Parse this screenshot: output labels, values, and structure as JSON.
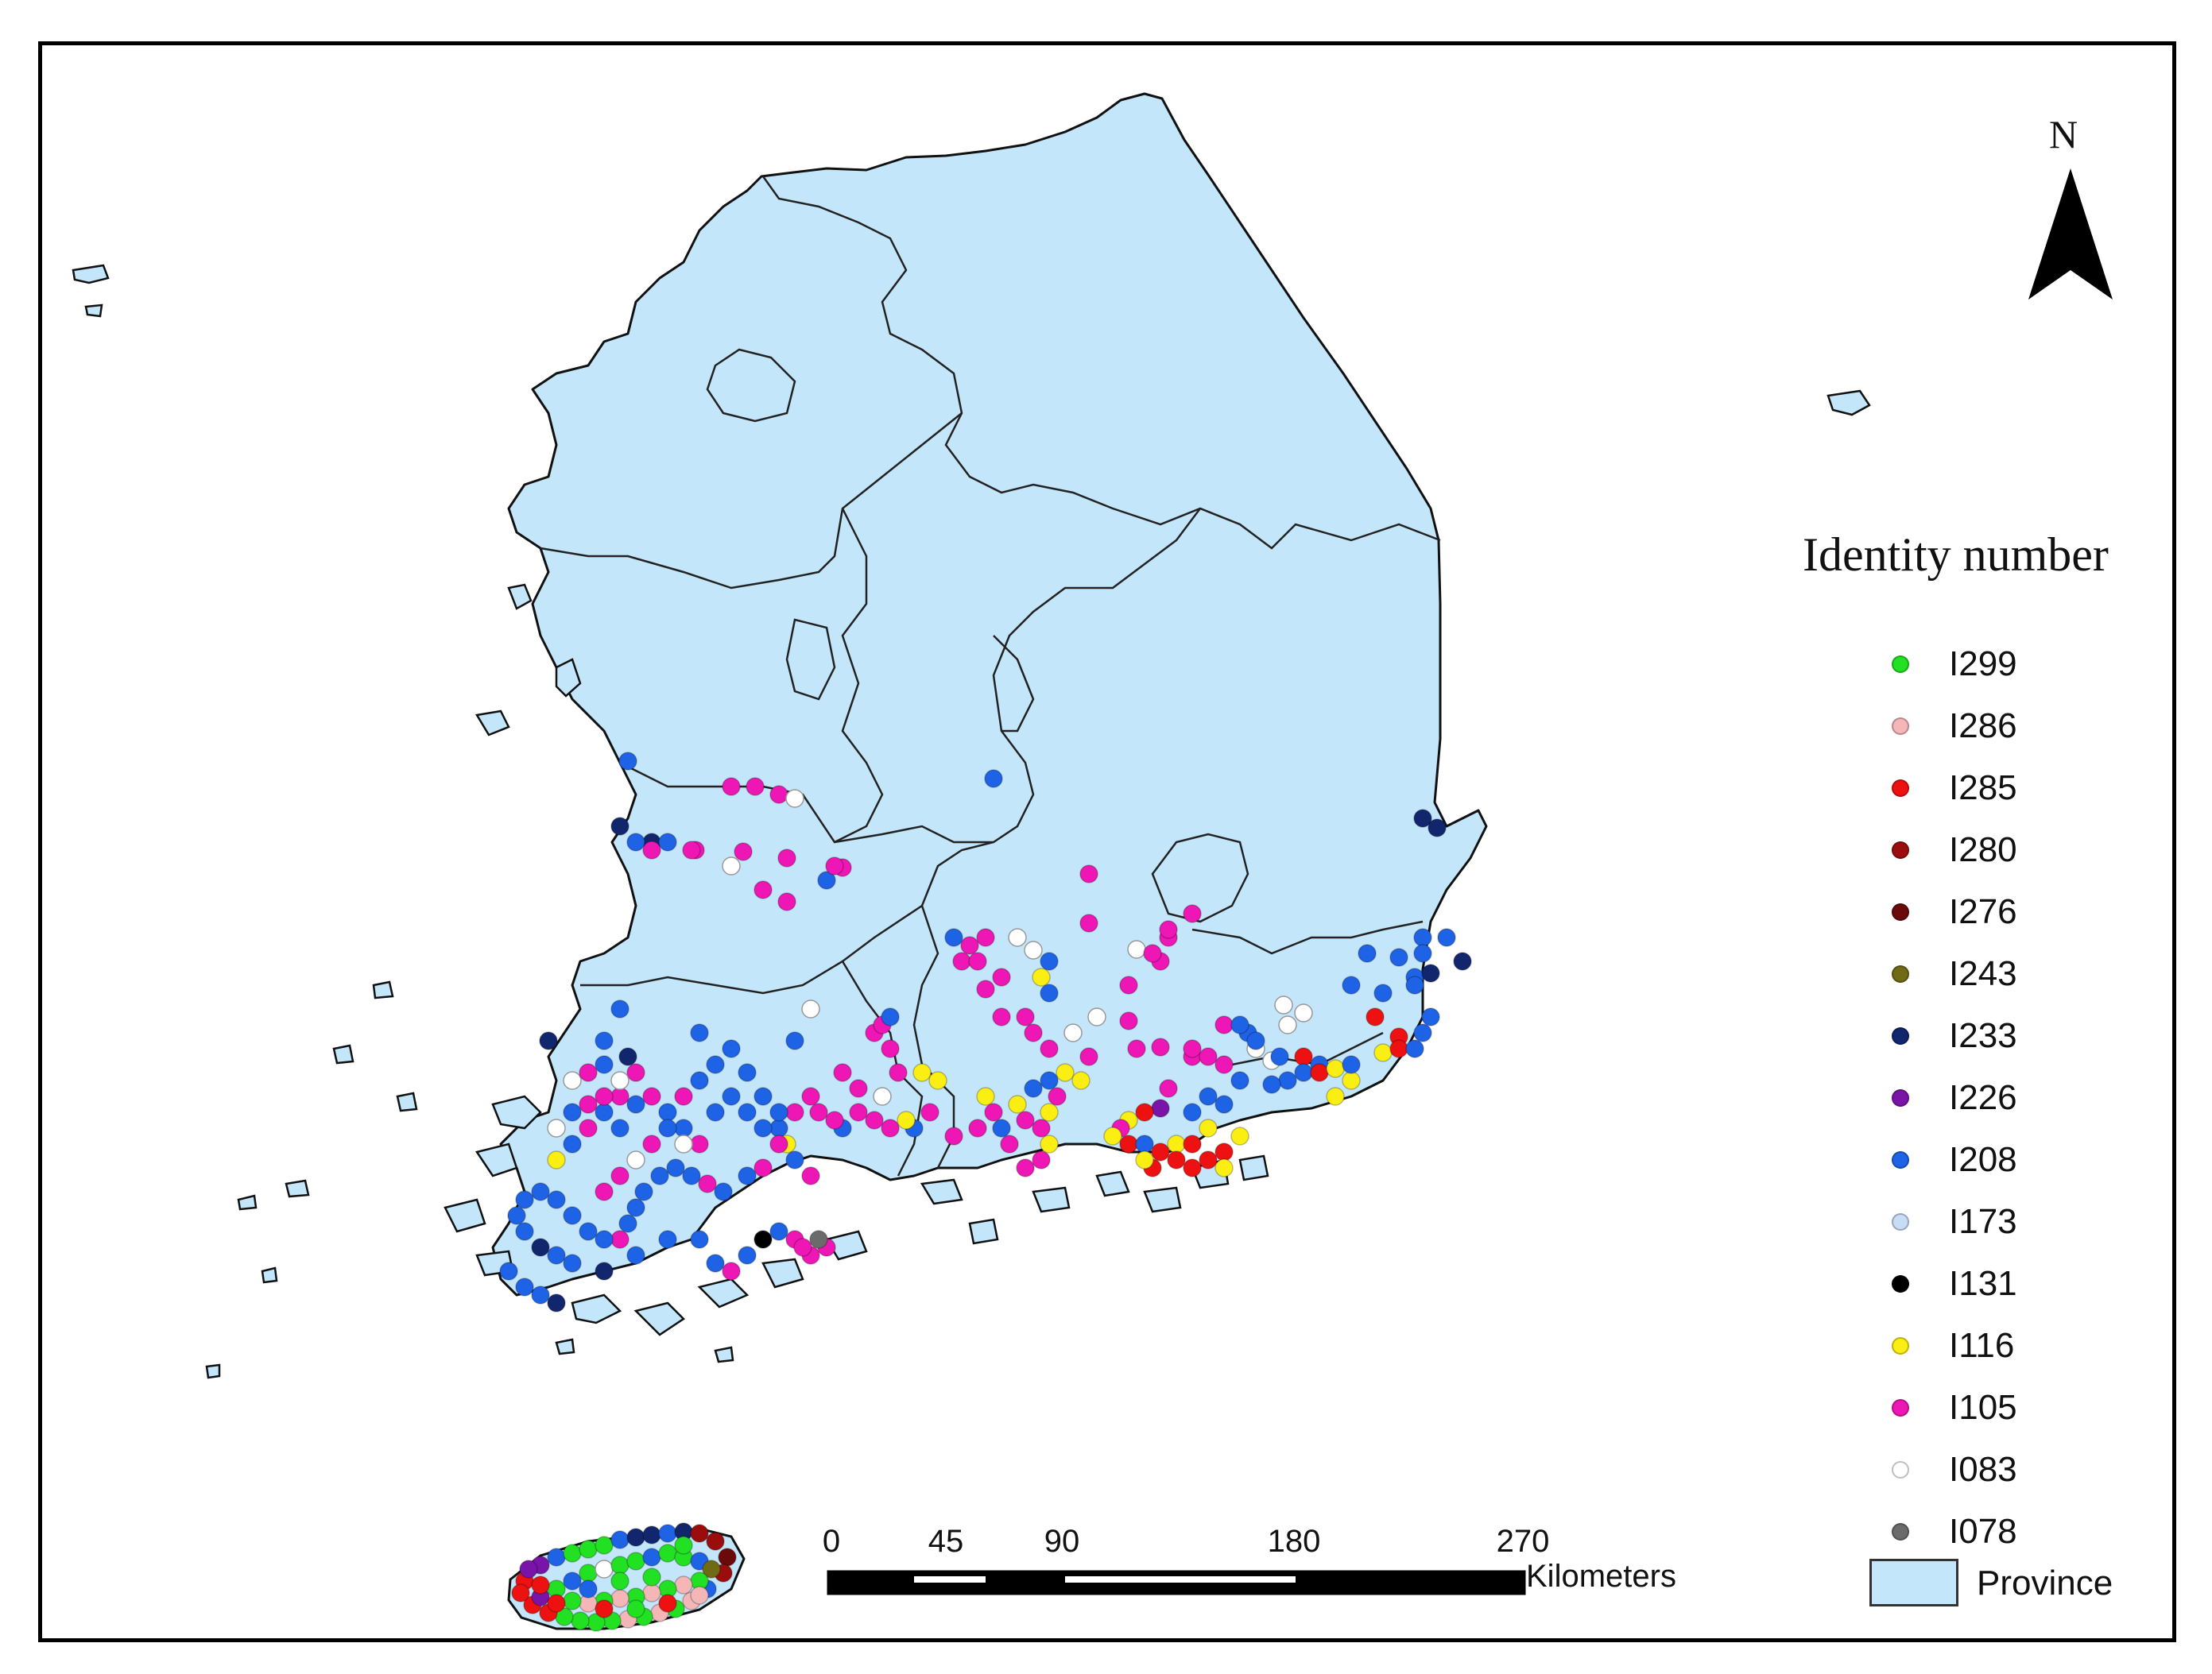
{
  "legend": {
    "title": "Identity number",
    "items": [
      {
        "label": "I299",
        "color": "#22e022"
      },
      {
        "label": "I286",
        "color": "#f4b6b6"
      },
      {
        "label": "I285",
        "color": "#ee1111"
      },
      {
        "label": "I280",
        "color": "#9b0d0d"
      },
      {
        "label": "I276",
        "color": "#6a0a0a"
      },
      {
        "label": "I243",
        "color": "#6f6a13"
      },
      {
        "label": "I233",
        "color": "#12266e"
      },
      {
        "label": "I226",
        "color": "#7a14a8"
      },
      {
        "label": "I208",
        "color": "#1e63e6"
      },
      {
        "label": "I173",
        "color": "#c8dcf6"
      },
      {
        "label": "I131",
        "color": "#000000"
      },
      {
        "label": "I116",
        "color": "#fbee12"
      },
      {
        "label": "I105",
        "color": "#ee16b4"
      },
      {
        "label": "I083",
        "color": "#ffffff"
      },
      {
        "label": "I078",
        "color": "#6b6b6b"
      }
    ],
    "province_label": "Province",
    "province_color": "#c4e6fb"
  },
  "north_arrow": {
    "label": "N"
  },
  "scale_bar": {
    "ticks": [
      "0",
      "45",
      "90",
      "180",
      "270"
    ],
    "unit": "Kilometers"
  }
}
